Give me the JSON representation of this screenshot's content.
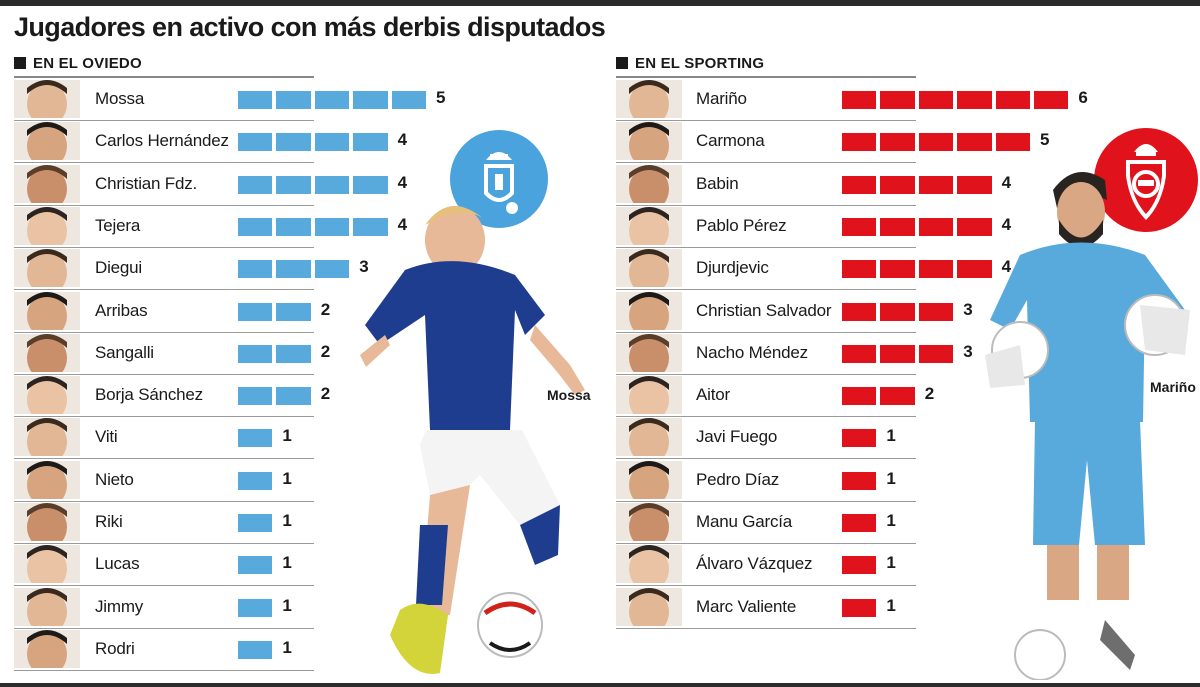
{
  "title": "Jugadores en activo con más derbis disputados",
  "oviedo": {
    "header": "EN EL OVIEDO",
    "caption": "Mossa",
    "color": "#58a9dc"
  },
  "sporting": {
    "header": "EN EL SPORTING",
    "caption": "Mariño",
    "color": "#e0131d"
  },
  "chart_data": [
    {
      "type": "bar",
      "title": "EN EL OVIEDO",
      "orientation": "horizontal",
      "unit_blocks": true,
      "color": "#58a9dc",
      "categories": [
        "Mossa",
        "Carlos Hernández",
        "Christian Fdz.",
        "Tejera",
        "Diegui",
        "Arribas",
        "Sangalli",
        "Borja Sánchez",
        "Viti",
        "Nieto",
        "Riki",
        "Lucas",
        "Jimmy",
        "Rodri"
      ],
      "values": [
        5,
        4,
        4,
        4,
        3,
        2,
        2,
        2,
        1,
        1,
        1,
        1,
        1,
        1
      ],
      "labels": [
        "5",
        "4",
        "4",
        "4",
        "3",
        "2",
        "2",
        "2",
        "1",
        "1",
        "1",
        "1",
        "1",
        "1"
      ]
    },
    {
      "type": "bar",
      "title": "EN EL SPORTING",
      "orientation": "horizontal",
      "unit_blocks": true,
      "color": "#e0131d",
      "categories": [
        "Mariño",
        "Carmona",
        "Babin",
        "Pablo Pérez",
        "Djurdjevic",
        "Christian Salvador",
        "Nacho Méndez",
        "Aitor",
        "Javi Fuego",
        "Pedro Díaz",
        "Manu García",
        "Álvaro Vázquez",
        "Marc Valiente"
      ],
      "values": [
        6,
        5,
        4,
        4,
        4,
        3,
        3,
        2,
        1,
        1,
        1,
        1,
        1
      ],
      "labels": [
        "6",
        "5",
        "4",
        "4",
        "4",
        "3",
        "3",
        "2",
        "1",
        "1",
        "1",
        "1",
        "1"
      ]
    }
  ]
}
